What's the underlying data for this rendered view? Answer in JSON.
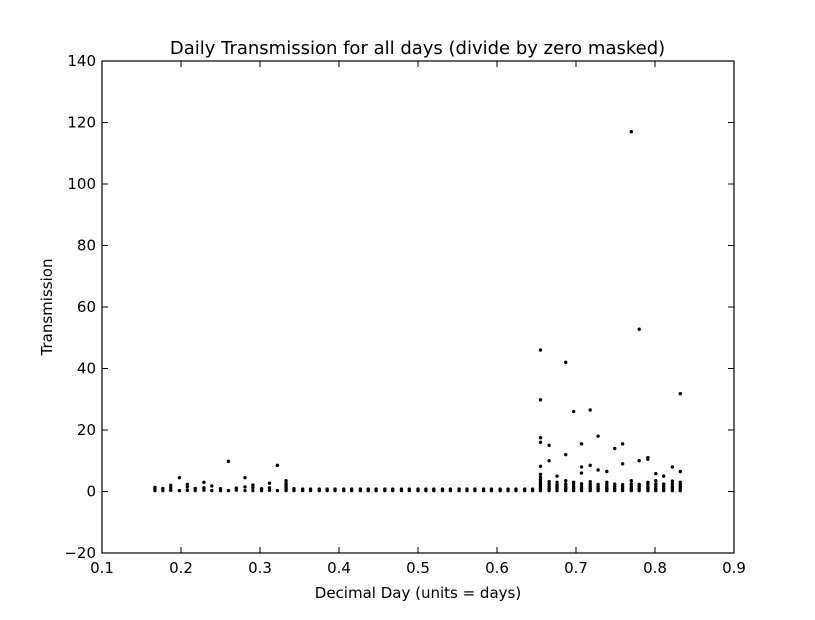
{
  "chart_data": {
    "type": "scatter",
    "title": "Daily Transmission for all days (divide by zero masked)",
    "xlabel": "Decimal Day (units = days)",
    "ylabel": "Transmission",
    "xlim": [
      0.1,
      0.9
    ],
    "ylim": [
      -20,
      140
    ],
    "xticks": [
      0.1,
      0.2,
      0.3,
      0.4,
      0.5,
      0.6,
      0.7,
      0.8,
      0.9
    ],
    "xtick_labels": [
      "0.1",
      "0.2",
      "0.3",
      "0.4",
      "0.5",
      "0.6",
      "0.7",
      "0.8",
      "0.9"
    ],
    "yticks": [
      -20,
      0,
      20,
      40,
      60,
      80,
      100,
      120,
      140
    ],
    "ytick_labels": [
      "−20",
      "0",
      "20",
      "40",
      "60",
      "80",
      "100",
      "120",
      "140"
    ],
    "grid": false,
    "legend": null,
    "marker_color": "#000000",
    "series": [
      {
        "points": [
          [
            0.167,
            0.3
          ],
          [
            0.167,
            0.8
          ],
          [
            0.167,
            1.3
          ],
          [
            0.177,
            0.3
          ],
          [
            0.177,
            1.0
          ],
          [
            0.187,
            0.4
          ],
          [
            0.187,
            1.2
          ],
          [
            0.187,
            2.0
          ],
          [
            0.198,
            0.3
          ],
          [
            0.198,
            4.5
          ],
          [
            0.208,
            0.4
          ],
          [
            0.208,
            1.5
          ],
          [
            0.208,
            2.3
          ],
          [
            0.218,
            0.3
          ],
          [
            0.218,
            1.0
          ],
          [
            0.229,
            0.4
          ],
          [
            0.229,
            1.2
          ],
          [
            0.229,
            3.0
          ],
          [
            0.239,
            0.3
          ],
          [
            0.239,
            1.8
          ],
          [
            0.25,
            0.3
          ],
          [
            0.25,
            0.9
          ],
          [
            0.26,
            0.3
          ],
          [
            0.26,
            9.8
          ],
          [
            0.27,
            0.4
          ],
          [
            0.27,
            1.1
          ],
          [
            0.281,
            0.3
          ],
          [
            0.281,
            1.5
          ],
          [
            0.281,
            4.5
          ],
          [
            0.291,
            0.3
          ],
          [
            0.291,
            1.3
          ],
          [
            0.291,
            2.1
          ],
          [
            0.302,
            0.3
          ],
          [
            0.302,
            0.9
          ],
          [
            0.312,
            0.4
          ],
          [
            0.312,
            1.2
          ],
          [
            0.312,
            2.7
          ],
          [
            0.322,
            0.3
          ],
          [
            0.322,
            8.5
          ],
          [
            0.333,
            0.3
          ],
          [
            0.333,
            0.8
          ],
          [
            0.333,
            1.4
          ],
          [
            0.333,
            2.0
          ],
          [
            0.333,
            2.6
          ],
          [
            0.333,
            3.5
          ],
          [
            0.343,
            0.3
          ],
          [
            0.343,
            0.9
          ],
          [
            0.354,
            0.3
          ],
          [
            0.354,
            0.8
          ],
          [
            0.364,
            0.3
          ],
          [
            0.364,
            0.8
          ],
          [
            0.375,
            0.3
          ],
          [
            0.375,
            0.8
          ],
          [
            0.385,
            0.3
          ],
          [
            0.385,
            0.8
          ],
          [
            0.395,
            0.3
          ],
          [
            0.395,
            0.8
          ],
          [
            0.406,
            0.3
          ],
          [
            0.406,
            0.8
          ],
          [
            0.416,
            0.3
          ],
          [
            0.416,
            0.8
          ],
          [
            0.427,
            0.3
          ],
          [
            0.427,
            0.8
          ],
          [
            0.437,
            0.3
          ],
          [
            0.437,
            0.8
          ],
          [
            0.447,
            0.3
          ],
          [
            0.447,
            0.8
          ],
          [
            0.458,
            0.3
          ],
          [
            0.458,
            0.8
          ],
          [
            0.468,
            0.3
          ],
          [
            0.468,
            0.8
          ],
          [
            0.479,
            0.3
          ],
          [
            0.479,
            0.8
          ],
          [
            0.489,
            0.3
          ],
          [
            0.489,
            0.8
          ],
          [
            0.5,
            0.3
          ],
          [
            0.5,
            0.8
          ],
          [
            0.51,
            0.3
          ],
          [
            0.51,
            0.8
          ],
          [
            0.52,
            0.3
          ],
          [
            0.52,
            0.8
          ],
          [
            0.531,
            0.3
          ],
          [
            0.531,
            0.8
          ],
          [
            0.541,
            0.3
          ],
          [
            0.541,
            0.8
          ],
          [
            0.552,
            0.3
          ],
          [
            0.552,
            0.8
          ],
          [
            0.562,
            0.3
          ],
          [
            0.562,
            0.8
          ],
          [
            0.572,
            0.3
          ],
          [
            0.572,
            0.8
          ],
          [
            0.583,
            0.3
          ],
          [
            0.583,
            0.8
          ],
          [
            0.593,
            0.3
          ],
          [
            0.593,
            0.8
          ],
          [
            0.604,
            0.3
          ],
          [
            0.604,
            0.8
          ],
          [
            0.614,
            0.3
          ],
          [
            0.614,
            0.8
          ],
          [
            0.624,
            0.3
          ],
          [
            0.624,
            0.8
          ],
          [
            0.635,
            0.3
          ],
          [
            0.635,
            0.8
          ],
          [
            0.645,
            0.3
          ],
          [
            0.645,
            0.8
          ],
          [
            0.655,
            0.3
          ],
          [
            0.655,
            0.9
          ],
          [
            0.655,
            1.6
          ],
          [
            0.655,
            2.3
          ],
          [
            0.655,
            3.0
          ],
          [
            0.655,
            3.8
          ],
          [
            0.655,
            4.6
          ],
          [
            0.655,
            5.6
          ],
          [
            0.655,
            8.2
          ],
          [
            0.655,
            16.0
          ],
          [
            0.655,
            17.5
          ],
          [
            0.655,
            29.8
          ],
          [
            0.655,
            46.0
          ],
          [
            0.666,
            0.3
          ],
          [
            0.666,
            0.9
          ],
          [
            0.666,
            1.6
          ],
          [
            0.666,
            2.4
          ],
          [
            0.666,
            3.2
          ],
          [
            0.666,
            10.0
          ],
          [
            0.666,
            15.0
          ],
          [
            0.676,
            0.3
          ],
          [
            0.676,
            0.9
          ],
          [
            0.676,
            1.5
          ],
          [
            0.676,
            2.2
          ],
          [
            0.676,
            3.0
          ],
          [
            0.676,
            5.0
          ],
          [
            0.687,
            0.3
          ],
          [
            0.687,
            0.9
          ],
          [
            0.687,
            1.6
          ],
          [
            0.687,
            2.4
          ],
          [
            0.687,
            3.5
          ],
          [
            0.687,
            12.0
          ],
          [
            0.687,
            42.0
          ],
          [
            0.697,
            0.3
          ],
          [
            0.697,
            0.9
          ],
          [
            0.697,
            1.5
          ],
          [
            0.697,
            2.3
          ],
          [
            0.697,
            3.0
          ],
          [
            0.697,
            26.0
          ],
          [
            0.707,
            0.3
          ],
          [
            0.707,
            0.9
          ],
          [
            0.707,
            1.6
          ],
          [
            0.707,
            2.5
          ],
          [
            0.707,
            6.0
          ],
          [
            0.707,
            8.0
          ],
          [
            0.707,
            15.5
          ],
          [
            0.718,
            0.3
          ],
          [
            0.718,
            0.9
          ],
          [
            0.718,
            1.6
          ],
          [
            0.718,
            2.4
          ],
          [
            0.718,
            3.2
          ],
          [
            0.718,
            8.5
          ],
          [
            0.718,
            26.5
          ],
          [
            0.728,
            0.3
          ],
          [
            0.728,
            0.9
          ],
          [
            0.728,
            1.6
          ],
          [
            0.728,
            2.3
          ],
          [
            0.728,
            7.0
          ],
          [
            0.728,
            18.0
          ],
          [
            0.739,
            0.3
          ],
          [
            0.739,
            0.9
          ],
          [
            0.739,
            1.5
          ],
          [
            0.739,
            2.2
          ],
          [
            0.739,
            3.0
          ],
          [
            0.739,
            6.5
          ],
          [
            0.749,
            0.3
          ],
          [
            0.749,
            0.9
          ],
          [
            0.749,
            1.6
          ],
          [
            0.749,
            2.4
          ],
          [
            0.749,
            14.0
          ],
          [
            0.759,
            0.3
          ],
          [
            0.759,
            0.9
          ],
          [
            0.759,
            1.5
          ],
          [
            0.759,
            2.2
          ],
          [
            0.759,
            9.0
          ],
          [
            0.759,
            15.5
          ],
          [
            0.77,
            0.3
          ],
          [
            0.77,
            0.9
          ],
          [
            0.77,
            1.6
          ],
          [
            0.77,
            2.4
          ],
          [
            0.77,
            3.5
          ],
          [
            0.77,
            117.0
          ],
          [
            0.78,
            0.3
          ],
          [
            0.78,
            0.9
          ],
          [
            0.78,
            1.6
          ],
          [
            0.78,
            2.3
          ],
          [
            0.78,
            10.0
          ],
          [
            0.78,
            52.8
          ],
          [
            0.791,
            0.3
          ],
          [
            0.791,
            0.9
          ],
          [
            0.791,
            1.5
          ],
          [
            0.791,
            2.3
          ],
          [
            0.791,
            3.0
          ],
          [
            0.791,
            10.5
          ],
          [
            0.791,
            11.0
          ],
          [
            0.801,
            0.3
          ],
          [
            0.801,
            0.9
          ],
          [
            0.801,
            1.6
          ],
          [
            0.801,
            2.4
          ],
          [
            0.801,
            3.5
          ],
          [
            0.801,
            5.8
          ],
          [
            0.811,
            0.3
          ],
          [
            0.811,
            0.9
          ],
          [
            0.811,
            1.6
          ],
          [
            0.811,
            2.4
          ],
          [
            0.811,
            5.0
          ],
          [
            0.822,
            0.3
          ],
          [
            0.822,
            0.9
          ],
          [
            0.822,
            1.6
          ],
          [
            0.822,
            2.5
          ],
          [
            0.822,
            3.4
          ],
          [
            0.822,
            8.0
          ],
          [
            0.832,
            0.3
          ],
          [
            0.832,
            0.9
          ],
          [
            0.832,
            1.6
          ],
          [
            0.832,
            2.3
          ],
          [
            0.832,
            3.0
          ],
          [
            0.832,
            6.5
          ],
          [
            0.832,
            31.8
          ]
        ]
      }
    ]
  }
}
